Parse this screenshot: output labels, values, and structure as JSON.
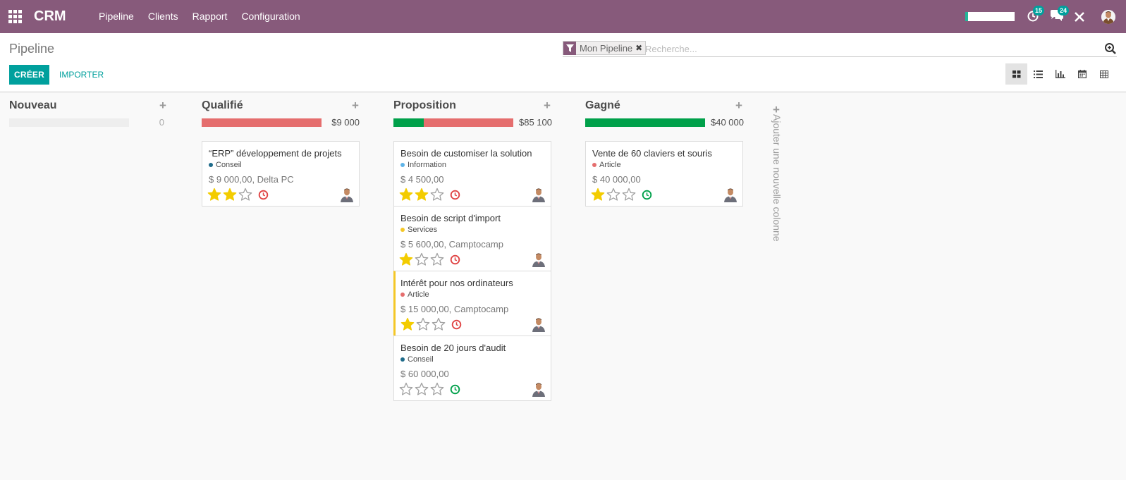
{
  "navbar": {
    "brand": "CRM",
    "menu": [
      "Pipeline",
      "Clients",
      "Rapport",
      "Configuration"
    ],
    "activities_count": "15",
    "messages_count": "24"
  },
  "control_panel": {
    "breadcrumb": "Pipeline",
    "search": {
      "facet": "Mon Pipeline",
      "placeholder": "Recherche..."
    },
    "create_label": "CRÉER",
    "import_label": "IMPORTER"
  },
  "columns": [
    {
      "title": "Nouveau",
      "total": "0",
      "progress": [],
      "cards": []
    },
    {
      "title": "Qualifié",
      "total": "$9 000",
      "progress": [
        {
          "color": "#e56e6e",
          "fraction": 1.0
        }
      ],
      "cards": [
        {
          "title": "“ERP” développement de projets",
          "tag": "Conseil",
          "tag_color": "#1f6b8a",
          "amount": "$ 9 000,00, Delta PC",
          "stars": 2,
          "activity": "late"
        }
      ]
    },
    {
      "title": "Proposition",
      "total": "$85 100",
      "progress": [
        {
          "color": "#00a04a",
          "fraction": 0.25
        },
        {
          "color": "#e56e6e",
          "fraction": 0.75
        }
      ],
      "cards": [
        {
          "title": "Besoin de customiser la solution",
          "tag": "Information",
          "tag_color": "#5fb4e8",
          "amount": "$ 4 500,00",
          "stars": 2,
          "activity": "late"
        },
        {
          "title": "Besoin de script d'import",
          "tag": "Services",
          "tag_color": "#f4c727",
          "amount": "$ 5 600,00, Camptocamp",
          "stars": 1,
          "activity": "late"
        },
        {
          "title": "Intérêt pour nos ordinateurs",
          "tag": "Article",
          "tag_color": "#e56e6e",
          "amount": "$ 15 000,00, Camptocamp",
          "stars": 1,
          "activity": "late",
          "highlight": true
        },
        {
          "title": "Besoin de 20 jours d'audit",
          "tag": "Conseil",
          "tag_color": "#1f6b8a",
          "amount": "$ 60 000,00",
          "stars": 0,
          "activity": "planned"
        }
      ]
    },
    {
      "title": "Gagné",
      "total": "$40 000",
      "progress": [
        {
          "color": "#00a04a",
          "fraction": 1.0
        }
      ],
      "cards": [
        {
          "title": "Vente de 60 claviers et souris",
          "tag": "Article",
          "tag_color": "#e56e6e",
          "amount": "$ 40 000,00",
          "stars": 1,
          "activity": "planned"
        }
      ]
    }
  ],
  "add_column_label": "Ajouter une nouvelle colonne"
}
